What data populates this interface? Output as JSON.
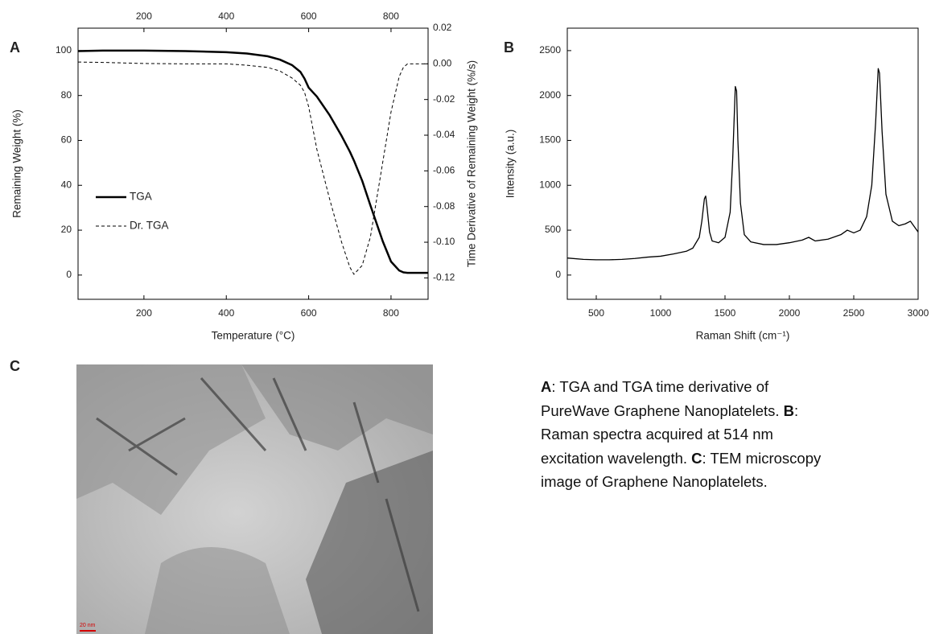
{
  "panels": [
    "A",
    "B",
    "C"
  ],
  "chart_data": [
    {
      "type": "line",
      "x": [
        40,
        100,
        150,
        200,
        300,
        400,
        450,
        500,
        530,
        560,
        580,
        590,
        600,
        620,
        650,
        680,
        700,
        710,
        730,
        750,
        780,
        800,
        820,
        830,
        840,
        860,
        890
      ],
      "series": [
        {
          "name": "TGA",
          "color": "#000000",
          "dash": "solid",
          "values": [
            99.8,
            100,
            100,
            100,
            99.8,
            99.3,
            98.7,
            97.5,
            96,
            93.5,
            90.5,
            87.5,
            83.5,
            79.5,
            71.5,
            62,
            55,
            51,
            42,
            31,
            15,
            6,
            2,
            1.2,
            1,
            1,
            1
          ]
        },
        {
          "name": "Dr. TGA",
          "color": "#000000",
          "dash": "dashed",
          "axis": "y2",
          "values": [
            0.001,
            0.0008,
            0.0005,
            0.0002,
            0,
            0,
            -0.0008,
            -0.002,
            -0.004,
            -0.008,
            -0.012,
            -0.016,
            -0.024,
            -0.048,
            -0.075,
            -0.1,
            -0.114,
            -0.118,
            -0.113,
            -0.097,
            -0.055,
            -0.027,
            -0.007,
            -0.002,
            0,
            0,
            0
          ]
        }
      ],
      "xlim": [
        40,
        890
      ],
      "xticks": [
        200,
        400,
        600,
        800
      ],
      "xaxis_top": true,
      "ylim": [
        -10.8,
        110
      ],
      "yticks": [
        0,
        20,
        40,
        60,
        80,
        100
      ],
      "y2lim": [
        -0.132,
        0.02
      ],
      "y2ticks": [
        0.02,
        {
          "value": 0,
          "label": "0.00"
        },
        -0.02,
        -0.04,
        -0.06,
        -0.08,
        {
          "value": -0.1,
          "label": "-0.10"
        },
        -0.12
      ],
      "xlabel": "Temperature (°C)",
      "ylabel": "Remaining Weight (%)",
      "y2label": "Time Derivative of Remaining Weight (%/s)",
      "legend": "left"
    },
    {
      "type": "line",
      "x": [
        275,
        400,
        500,
        600,
        700,
        800,
        900,
        1000,
        1100,
        1200,
        1250,
        1300,
        1320,
        1340,
        1350,
        1360,
        1380,
        1400,
        1450,
        1500,
        1540,
        1560,
        1580,
        1590,
        1600,
        1620,
        1650,
        1700,
        1800,
        1900,
        2000,
        2100,
        2150,
        2200,
        2300,
        2400,
        2450,
        2500,
        2550,
        2600,
        2640,
        2670,
        2690,
        2700,
        2720,
        2750,
        2800,
        2850,
        2900,
        2940,
        2980,
        3000
      ],
      "series": [
        {
          "color": "#000000",
          "dash": "solid",
          "values": [
            190,
            175,
            170,
            170,
            175,
            185,
            200,
            210,
            235,
            265,
            300,
            420,
            600,
            850,
            880,
            760,
            480,
            380,
            360,
            420,
            700,
            1300,
            2100,
            2050,
            1500,
            800,
            450,
            370,
            340,
            340,
            360,
            390,
            420,
            380,
            400,
            450,
            500,
            470,
            500,
            650,
            1000,
            1700,
            2300,
            2250,
            1600,
            900,
            600,
            550,
            570,
            600,
            520,
            480
          ]
        }
      ],
      "xlim": [
        275,
        3000
      ],
      "xticks": [
        500,
        1000,
        1500,
        2000,
        2500,
        3000
      ],
      "ylim": [
        -270,
        2750
      ],
      "yticks": [
        0,
        500,
        1000,
        1500,
        2000,
        2500
      ],
      "xlabel": "Raman Shift (cm⁻¹)",
      "ylabel": "Intensity (a.u.)"
    }
  ],
  "image": {
    "scale_bar": "20 nm"
  },
  "caption": [
    {
      "label": "A",
      "text": ": TGA and TGA time derivative of PureWave Graphene Nanoplatelets."
    },
    {
      "label": "B",
      "text": ": Raman spectra acquired at 514 nm excitation wavelength."
    },
    {
      "label": "C",
      "text": ": TEM microscopy image of Graphene Nanoplatelets."
    }
  ]
}
